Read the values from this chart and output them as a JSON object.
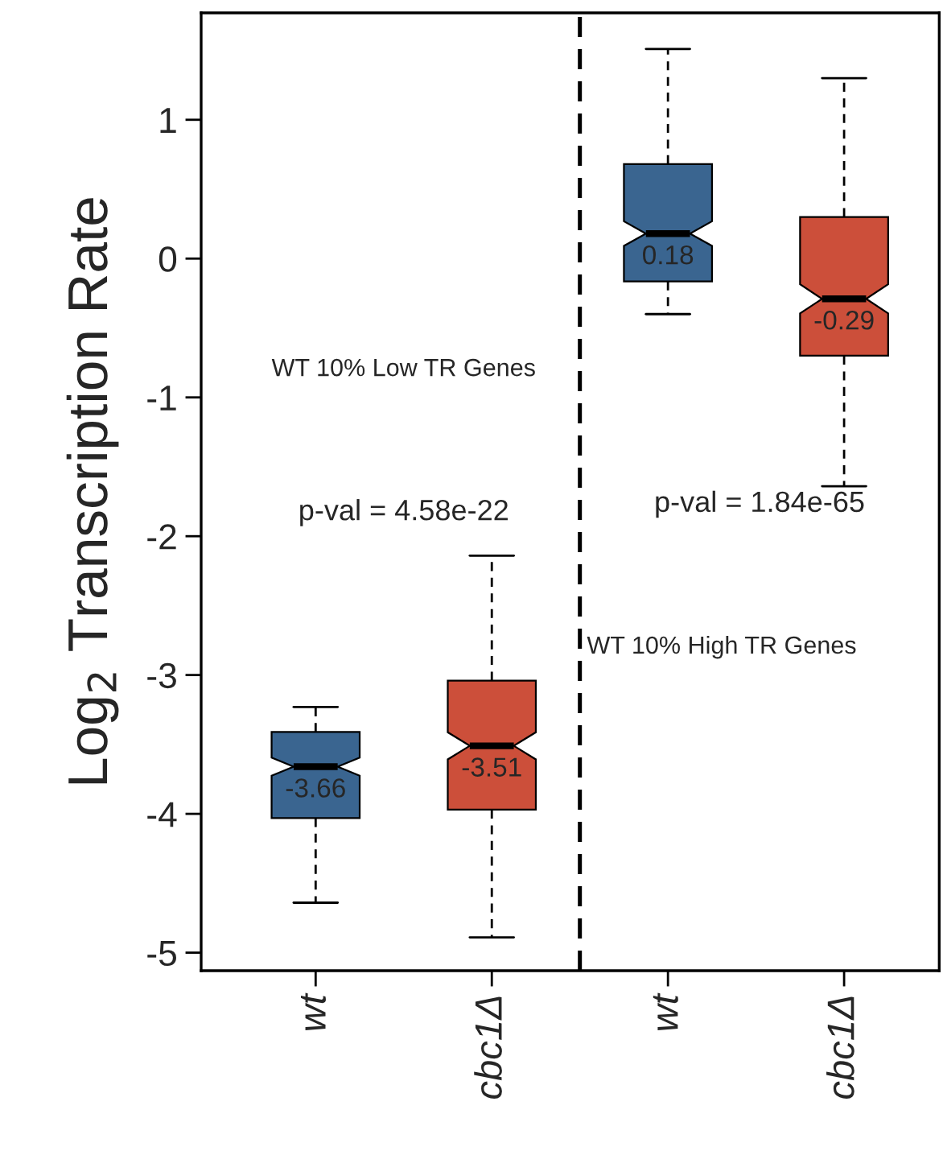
{
  "chart_data": {
    "type": "box",
    "ylabel": "Log$_{2}$ Transcription Rate",
    "categories": [
      "wt",
      "cbc1Δ",
      "wt",
      "cbc1Δ"
    ],
    "colors": [
      "#3a6590",
      "#cc4f3a",
      "#3a6590",
      "#cc4f3a"
    ],
    "boxes": [
      {
        "low": -4.64,
        "q1": -4.03,
        "median": -3.66,
        "q3": -3.41,
        "high": -3.23
      },
      {
        "low": -4.89,
        "q1": -3.97,
        "median": -3.51,
        "q3": -3.04,
        "high": -2.14
      },
      {
        "low": -0.4,
        "q1": -0.165,
        "median": 0.18,
        "q3": 0.68,
        "high": 1.51
      },
      {
        "low": -1.64,
        "q1": -0.7,
        "median": -0.29,
        "q3": 0.3,
        "high": 1.3
      }
    ],
    "value_labels": [
      "-3.66",
      "-3.51",
      "0.18",
      "-0.29"
    ],
    "ylim": [
      -5.13,
      1.77
    ],
    "yticks": [
      -5,
      -4,
      -3,
      -2,
      -1,
      0,
      1
    ],
    "annotations": [
      "WT 10% Low TR Genes",
      "p-val = 4.58e-22",
      "p-val = 1.84e-65",
      "WT 10% High TR Genes"
    ],
    "grid": false
  }
}
